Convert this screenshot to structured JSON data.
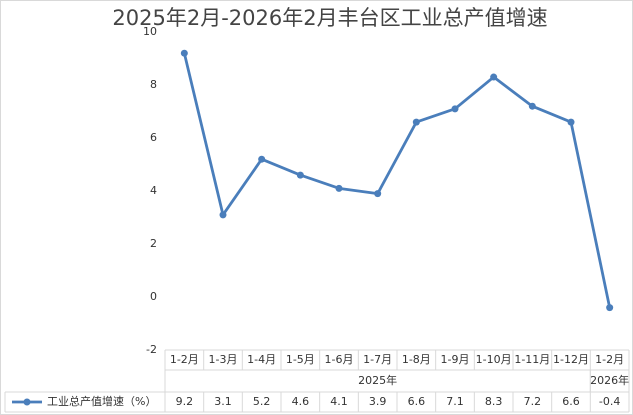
{
  "chart_data": {
    "type": "line",
    "title": "2025年2月-2026年2月丰台区工业总产值增速",
    "groups": [
      {
        "label": "2025年",
        "categories": [
          "1-2月",
          "1-3月",
          "1-4月",
          "1-5月",
          "1-6月",
          "1-7月",
          "1-8月",
          "1-9月",
          "1-10月",
          "1-11月",
          "1-12月"
        ]
      },
      {
        "label": "2026年",
        "categories": [
          "1-2月"
        ]
      }
    ],
    "series": [
      {
        "name": "工业总产值增速（%）",
        "color": "#4a7ebb",
        "values": [
          9.2,
          3.1,
          5.2,
          4.6,
          4.1,
          3.9,
          6.6,
          7.1,
          8.3,
          7.2,
          6.6,
          -0.4
        ]
      }
    ],
    "ylim": [
      -2,
      10
    ],
    "yticks": [
      -2,
      0,
      2,
      4,
      6,
      8,
      10
    ],
    "grid": false,
    "data_table": true
  }
}
